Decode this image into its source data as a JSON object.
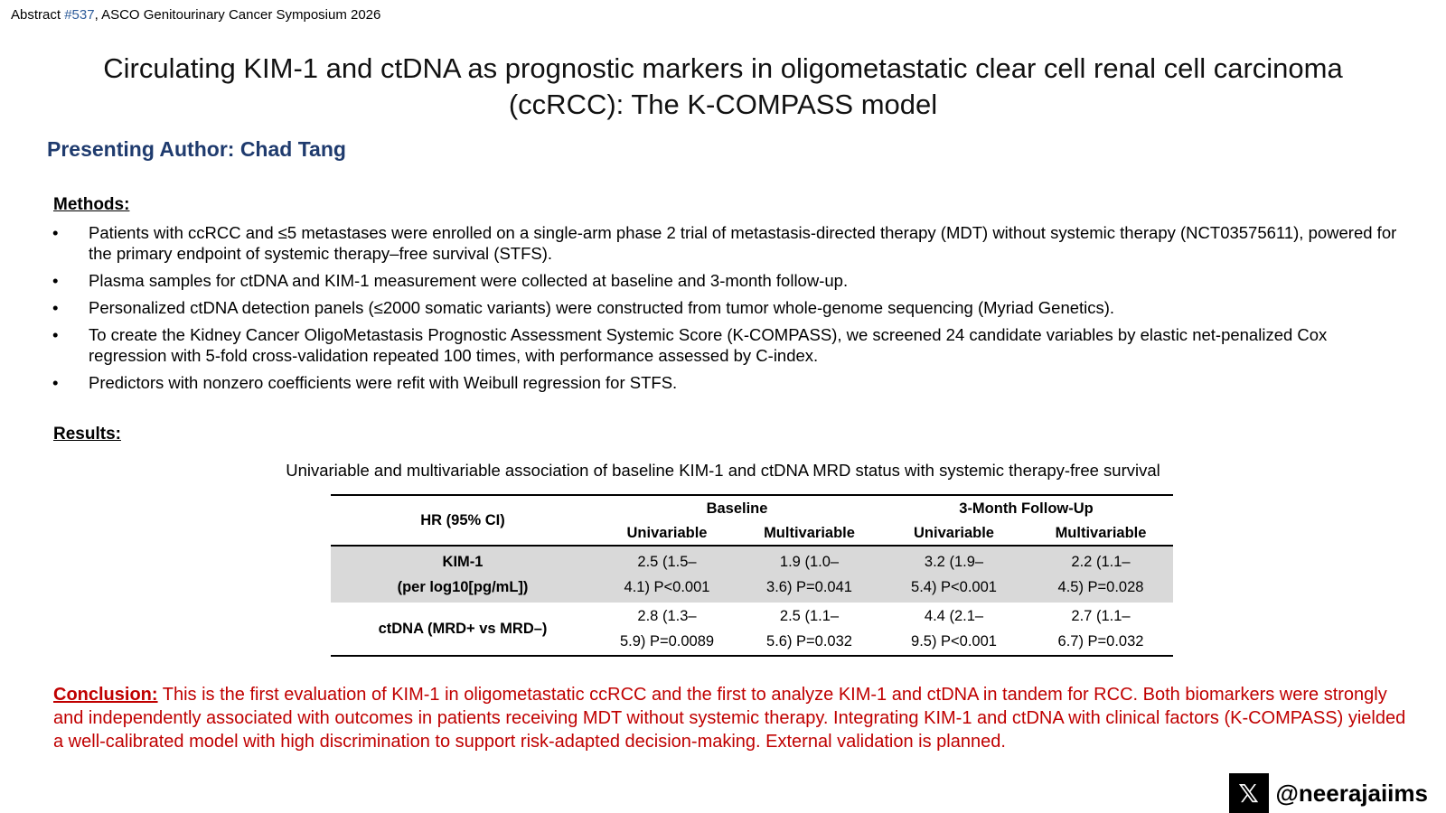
{
  "header": {
    "abstract_prefix": "Abstract ",
    "abstract_number": "#537",
    "abstract_suffix": ", ASCO Genitourinary Cancer Symposium 2026"
  },
  "title": "Circulating KIM-1 and ctDNA as prognostic markers in oligometastatic clear cell renal cell carcinoma (ccRCC): The K-COMPASS model",
  "author": "Presenting Author: Chad Tang",
  "methods": {
    "heading": "Methods:",
    "bullets": [
      "Patients with ccRCC and ≤5 metastases were enrolled on a single-arm phase 2 trial of metastasis-directed therapy (MDT) without systemic therapy (NCT03575611), powered for the primary endpoint of systemic therapy–free survival (STFS).",
      "Plasma samples for ctDNA and KIM-1 measurement were collected at baseline and 3-month follow-up.",
      "Personalized ctDNA detection panels (≤2000 somatic variants) were constructed from tumor whole-genome sequencing (Myriad Genetics).",
      "To create the Kidney Cancer OligoMetastasis Prognostic Assessment Systemic Score (K-COMPASS), we screened 24 candidate variables by elastic net-penalized Cox regression with 5-fold cross-validation repeated 100 times, with performance assessed by C-index.",
      "Predictors with nonzero coefficients were refit with Weibull regression for STFS."
    ]
  },
  "results": {
    "heading": "Results:",
    "table_caption": "Univariable and multivariable association of baseline KIM-1 and ctDNA MRD status with systemic therapy-free survival",
    "table": {
      "corner": "HR (95% CI)",
      "group1": "Baseline",
      "group2": "3-Month Follow-Up",
      "sub": [
        "Univariable",
        "Multivariable",
        "Univariable",
        "Multivariable"
      ],
      "rows": [
        {
          "label_line1": "KIM-1",
          "label_line2": "(per log10[pg/mL])",
          "cells": [
            [
              "2.5 (1.5–",
              "4.1) P<0.001"
            ],
            [
              "1.9 (1.0–",
              "3.6) P=0.041"
            ],
            [
              "3.2 (1.9–",
              "5.4) P<0.001"
            ],
            [
              "2.2 (1.1–",
              "4.5) P=0.028"
            ]
          ]
        },
        {
          "label_line1": "ctDNA (MRD+ vs MRD–)",
          "label_line2": "",
          "cells": [
            [
              "2.8 (1.3–",
              "5.9) P=0.0089"
            ],
            [
              "2.5 (1.1–",
              "5.6) P=0.032"
            ],
            [
              "4.4 (2.1–",
              "9.5) P<0.001"
            ],
            [
              "2.7 (1.1–",
              "6.7) P=0.032"
            ]
          ]
        }
      ]
    }
  },
  "conclusion": {
    "label": "Conclusion:",
    "text": " This is the first evaluation of KIM-1 in oligometastatic ccRCC and the first to analyze KIM-1 and ctDNA in tandem for RCC. Both biomarkers were strongly and independently associated with outcomes in patients receiving MDT without systemic therapy. Integrating KIM-1 and ctDNA with clinical factors (K-COMPASS) yielded a well-calibrated model with high discrimination to support risk-adapted decision-making. External validation is planned."
  },
  "footer": {
    "icon": "x-logo-icon",
    "icon_glyph": "𝕏",
    "handle": "@neerajaiims"
  },
  "colors": {
    "author": "#1f3b6e",
    "conclusion": "#c00000",
    "abstract_number": "#2e5c9a",
    "table_shade": "#d9d9d9"
  }
}
